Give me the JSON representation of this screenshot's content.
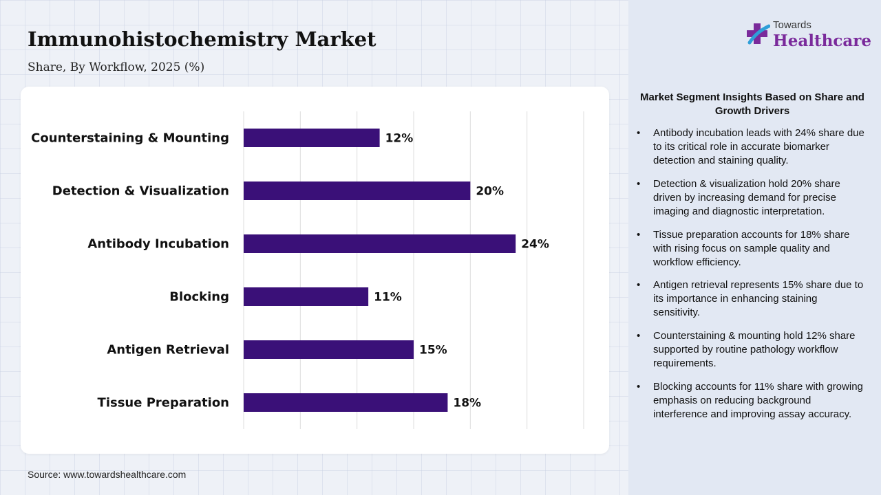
{
  "header": {
    "title": "Immunohistochemistry Market",
    "subtitle": "Share, By Workflow, 2025 (%)"
  },
  "logo": {
    "top_text": "Towards",
    "main_text": "Healthcare",
    "icon": "medical-cross-icon",
    "color_primary": "#7a2a9b",
    "color_secondary": "#2f9fd8"
  },
  "chart_data": {
    "type": "bar",
    "orientation": "horizontal",
    "categories": [
      "Counterstaining & Mounting",
      "Detection & Visualization",
      "Antibody Incubation",
      "Blocking",
      "Antigen Retrieval",
      "Tissue Preparation"
    ],
    "values": [
      12,
      20,
      24,
      11,
      15,
      18
    ],
    "value_labels": [
      "12%",
      "20%",
      "24%",
      "11%",
      "15%",
      "18%"
    ],
    "xlim": [
      0,
      30
    ],
    "grid": true,
    "bar_color": "#3a1078"
  },
  "insights": {
    "title": "Market Segment Insights Based on Share and Growth Drivers",
    "items": [
      "Antibody incubation leads with 24% share due to its critical role in accurate biomarker detection and staining quality.",
      "Detection & visualization hold 20% share driven by increasing demand for precise imaging and diagnostic interpretation.",
      "Tissue preparation accounts for 18% share with rising focus on sample quality and workflow efficiency.",
      "Antigen retrieval represents 15% share due to its importance in enhancing staining sensitivity.",
      "Counterstaining & mounting hold 12% share supported by routine pathology workflow requirements.",
      "Blocking accounts for 11% share with growing emphasis on reducing background interference and improving assay accuracy."
    ]
  },
  "footer": {
    "source": "Source: www.towardshealthcare.com"
  }
}
